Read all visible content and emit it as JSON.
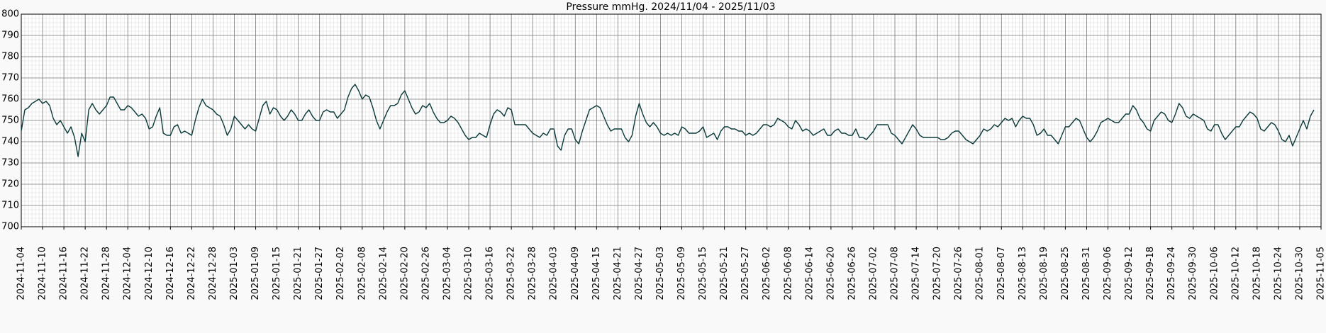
{
  "chart_data": {
    "type": "line",
    "title": "Pressure mmHg. 2024/11/04 - 2025/11/03",
    "color": "#0b3a3a",
    "grid": true,
    "minor_grid": true,
    "ylim": [
      700,
      800
    ],
    "yticks": [
      700,
      710,
      720,
      730,
      740,
      750,
      760,
      770,
      780,
      790,
      800
    ],
    "xlim": [
      "2024-11-04",
      "2025-11-05"
    ],
    "xticks": [
      "2024-11-04",
      "2024-11-10",
      "2024-11-16",
      "2024-11-22",
      "2024-11-28",
      "2024-12-04",
      "2024-12-10",
      "2024-12-16",
      "2024-12-22",
      "2024-12-28",
      "2025-01-03",
      "2025-01-09",
      "2025-01-15",
      "2025-01-21",
      "2025-01-27",
      "2025-02-02",
      "2025-02-08",
      "2025-02-14",
      "2025-02-20",
      "2025-02-26",
      "2025-03-04",
      "2025-03-10",
      "2025-03-16",
      "2025-03-22",
      "2025-03-28",
      "2025-04-03",
      "2025-04-09",
      "2025-04-15",
      "2025-04-21",
      "2025-04-27",
      "2025-05-03",
      "2025-05-09",
      "2025-05-15",
      "2025-05-21",
      "2025-05-27",
      "2025-06-02",
      "2025-06-08",
      "2025-06-14",
      "2025-06-20",
      "2025-06-26",
      "2025-07-02",
      "2025-07-08",
      "2025-07-14",
      "2025-07-20",
      "2025-07-26",
      "2025-08-01",
      "2025-08-07",
      "2025-08-13",
      "2025-08-19",
      "2025-08-25",
      "2025-08-31",
      "2025-09-06",
      "2025-09-12",
      "2025-09-18",
      "2025-09-24",
      "2025-09-30",
      "2025-10-06",
      "2025-10-12",
      "2025-10-18",
      "2025-10-24",
      "2025-10-30",
      "2025-11-05"
    ],
    "x": [
      "2024-11-04",
      "2024-11-05",
      "2024-11-06",
      "2024-11-07",
      "2024-11-08",
      "2024-11-09",
      "2024-11-10",
      "2024-11-11",
      "2024-11-12",
      "2024-11-13",
      "2024-11-14",
      "2024-11-15",
      "2024-11-16",
      "2024-11-17",
      "2024-11-18",
      "2024-11-19",
      "2024-11-20",
      "2024-11-21",
      "2024-11-22",
      "2024-11-23",
      "2024-11-24",
      "2024-11-25",
      "2024-11-26",
      "2024-11-27",
      "2024-11-28",
      "2024-11-29",
      "2024-11-30",
      "2024-12-01",
      "2024-12-02",
      "2024-12-03",
      "2024-12-04",
      "2024-12-05",
      "2024-12-06",
      "2024-12-07",
      "2024-12-08",
      "2024-12-09",
      "2024-12-10",
      "2024-12-11",
      "2024-12-12",
      "2024-12-13",
      "2024-12-14",
      "2024-12-15",
      "2024-12-16",
      "2024-12-17",
      "2024-12-18",
      "2024-12-19",
      "2024-12-20",
      "2024-12-21",
      "2024-12-22",
      "2024-12-23",
      "2024-12-24",
      "2024-12-25",
      "2024-12-26",
      "2024-12-27",
      "2024-12-28",
      "2024-12-29",
      "2024-12-30",
      "2024-12-31",
      "2025-01-01",
      "2025-01-02",
      "2025-01-03",
      "2025-01-04",
      "2025-01-05",
      "2025-01-06",
      "2025-01-07",
      "2025-01-08",
      "2025-01-09",
      "2025-01-10",
      "2025-01-11",
      "2025-01-12",
      "2025-01-13",
      "2025-01-14",
      "2025-01-15",
      "2025-01-16",
      "2025-01-17",
      "2025-01-18",
      "2025-01-19",
      "2025-01-20",
      "2025-01-21",
      "2025-01-22",
      "2025-01-23",
      "2025-01-24",
      "2025-01-25",
      "2025-01-26",
      "2025-01-27",
      "2025-01-28",
      "2025-01-29",
      "2025-01-30",
      "2025-01-31",
      "2025-02-01",
      "2025-02-02",
      "2025-02-03",
      "2025-02-04",
      "2025-02-05",
      "2025-02-06",
      "2025-02-07",
      "2025-02-08",
      "2025-02-09",
      "2025-02-10",
      "2025-02-11",
      "2025-02-12",
      "2025-02-13",
      "2025-02-14",
      "2025-02-15",
      "2025-02-16",
      "2025-02-17",
      "2025-02-18",
      "2025-02-19",
      "2025-02-20",
      "2025-02-21",
      "2025-02-22",
      "2025-02-23",
      "2025-02-24",
      "2025-02-25",
      "2025-02-26",
      "2025-02-27",
      "2025-02-28",
      "2025-03-01",
      "2025-03-02",
      "2025-03-03",
      "2025-03-04",
      "2025-03-05",
      "2025-03-06",
      "2025-03-07",
      "2025-03-08",
      "2025-03-09",
      "2025-03-10",
      "2025-03-11",
      "2025-03-12",
      "2025-03-13",
      "2025-03-14",
      "2025-03-15",
      "2025-03-16",
      "2025-03-17",
      "2025-03-18",
      "2025-03-19",
      "2025-03-20",
      "2025-03-21",
      "2025-03-22",
      "2025-03-23",
      "2025-03-24",
      "2025-03-25",
      "2025-03-26",
      "2025-03-27",
      "2025-03-28",
      "2025-03-29",
      "2025-03-30",
      "2025-03-31",
      "2025-04-01",
      "2025-04-02",
      "2025-04-03",
      "2025-04-04",
      "2025-04-05",
      "2025-04-06",
      "2025-04-07",
      "2025-04-08",
      "2025-04-09",
      "2025-04-10",
      "2025-04-11",
      "2025-04-12",
      "2025-04-13",
      "2025-04-14",
      "2025-04-15",
      "2025-04-16",
      "2025-04-17",
      "2025-04-18",
      "2025-04-19",
      "2025-04-20",
      "2025-04-21",
      "2025-04-22",
      "2025-04-23",
      "2025-04-24",
      "2025-04-25",
      "2025-04-26",
      "2025-04-27",
      "2025-04-28",
      "2025-04-29",
      "2025-04-30",
      "2025-05-01",
      "2025-05-02",
      "2025-05-03",
      "2025-05-04",
      "2025-05-05",
      "2025-05-06",
      "2025-05-07",
      "2025-05-08",
      "2025-05-09",
      "2025-05-10",
      "2025-05-11",
      "2025-05-12",
      "2025-05-13",
      "2025-05-14",
      "2025-05-15",
      "2025-05-16",
      "2025-05-17",
      "2025-05-18",
      "2025-05-19",
      "2025-05-20",
      "2025-05-21",
      "2025-05-22",
      "2025-05-23",
      "2025-05-24",
      "2025-05-25",
      "2025-05-26",
      "2025-05-27",
      "2025-05-28",
      "2025-05-29",
      "2025-05-30",
      "2025-05-31",
      "2025-06-01",
      "2025-06-02",
      "2025-06-03",
      "2025-06-04",
      "2025-06-05",
      "2025-06-06",
      "2025-06-07",
      "2025-06-08",
      "2025-06-09",
      "2025-06-10",
      "2025-06-11",
      "2025-06-12",
      "2025-06-13",
      "2025-06-14",
      "2025-06-15",
      "2025-06-16",
      "2025-06-17",
      "2025-06-18",
      "2025-06-19",
      "2025-06-20",
      "2025-06-21",
      "2025-06-22",
      "2025-06-23",
      "2025-06-24",
      "2025-06-25",
      "2025-06-26",
      "2025-06-27",
      "2025-06-28",
      "2025-06-29",
      "2025-06-30",
      "2025-07-01",
      "2025-07-02",
      "2025-07-03",
      "2025-07-04",
      "2025-07-05",
      "2025-07-06",
      "2025-07-07",
      "2025-07-08",
      "2025-07-09",
      "2025-07-10",
      "2025-07-11",
      "2025-07-12",
      "2025-07-13",
      "2025-07-14",
      "2025-07-15",
      "2025-07-16",
      "2025-07-17",
      "2025-07-18",
      "2025-07-19",
      "2025-07-20",
      "2025-07-21",
      "2025-07-22",
      "2025-07-23",
      "2025-07-24",
      "2025-07-25",
      "2025-07-26",
      "2025-07-27",
      "2025-07-28",
      "2025-07-29",
      "2025-07-30",
      "2025-07-31",
      "2025-08-01",
      "2025-08-02",
      "2025-08-03",
      "2025-08-04",
      "2025-08-05",
      "2025-08-06",
      "2025-08-07",
      "2025-08-08",
      "2025-08-09",
      "2025-08-10",
      "2025-08-11",
      "2025-08-12",
      "2025-08-13",
      "2025-08-14",
      "2025-08-15",
      "2025-08-16",
      "2025-08-17",
      "2025-08-18",
      "2025-08-19",
      "2025-08-20",
      "2025-08-21",
      "2025-08-22",
      "2025-08-23",
      "2025-08-24",
      "2025-08-25",
      "2025-08-26",
      "2025-08-27",
      "2025-08-28",
      "2025-08-29",
      "2025-08-30",
      "2025-08-31",
      "2025-09-01",
      "2025-09-02",
      "2025-09-03",
      "2025-09-04",
      "2025-09-05",
      "2025-09-06",
      "2025-09-07",
      "2025-09-08",
      "2025-09-09",
      "2025-09-10",
      "2025-09-11",
      "2025-09-12",
      "2025-09-13",
      "2025-09-14",
      "2025-09-15",
      "2025-09-16",
      "2025-09-17",
      "2025-09-18",
      "2025-09-19",
      "2025-09-20",
      "2025-09-21",
      "2025-09-22",
      "2025-09-23",
      "2025-09-24",
      "2025-09-25",
      "2025-09-26",
      "2025-09-27",
      "2025-09-28",
      "2025-09-29",
      "2025-09-30",
      "2025-10-01",
      "2025-10-02",
      "2025-10-03",
      "2025-10-04",
      "2025-10-05",
      "2025-10-06",
      "2025-10-07",
      "2025-10-08",
      "2025-10-09",
      "2025-10-10",
      "2025-10-11",
      "2025-10-12",
      "2025-10-13",
      "2025-10-14",
      "2025-10-15",
      "2025-10-16",
      "2025-10-17",
      "2025-10-18",
      "2025-10-19",
      "2025-10-20",
      "2025-10-21",
      "2025-10-22",
      "2025-10-23",
      "2025-10-24",
      "2025-10-25",
      "2025-10-26",
      "2025-10-27",
      "2025-10-28",
      "2025-10-29",
      "2025-10-30",
      "2025-10-31",
      "2025-11-01",
      "2025-11-02",
      "2025-11-03"
    ],
    "values": [
      745,
      755,
      756,
      758,
      759,
      760,
      758,
      759,
      757,
      751,
      748,
      750,
      747,
      744,
      747,
      742,
      733,
      744,
      740,
      755,
      758,
      755,
      753,
      755,
      757,
      761,
      761,
      758,
      755,
      755,
      757,
      756,
      754,
      752,
      753,
      751,
      746,
      747,
      752,
      756,
      744,
      743,
      743,
      747,
      748,
      744,
      745,
      744,
      743,
      750,
      756,
      760,
      757,
      756,
      755,
      753,
      752,
      748,
      743,
      746,
      752,
      750,
      748,
      746,
      748,
      746,
      745,
      751,
      757,
      759,
      753,
      756,
      755,
      752,
      750,
      752,
      755,
      753,
      750,
      750,
      753,
      755,
      752,
      750,
      750,
      754,
      755,
      754,
      754,
      751,
      753,
      755,
      761,
      765,
      767,
      764,
      760,
      762,
      761,
      756,
      750,
      746,
      750,
      754,
      757,
      757,
      758,
      762,
      764,
      760,
      756,
      753,
      754,
      757,
      756,
      758,
      754,
      751,
      749,
      749,
      750,
      752,
      751,
      749,
      746,
      743,
      741,
      742,
      742,
      744,
      743,
      742,
      748,
      753,
      755,
      754,
      752,
      756,
      755,
      748,
      748,
      748,
      748,
      746,
      744,
      743,
      742,
      744,
      743,
      746,
      746,
      738,
      736,
      743,
      746,
      746,
      741,
      739,
      745,
      750,
      755,
      756,
      757,
      756,
      752,
      748,
      745,
      746,
      746,
      746,
      742,
      740,
      743,
      752,
      758,
      753,
      749,
      747,
      749,
      747,
      744,
      743,
      744,
      743,
      744,
      743,
      747,
      746,
      744,
      744,
      744,
      745,
      747,
      742,
      743,
      744,
      741,
      745,
      747,
      747,
      746,
      746,
      745,
      745,
      743,
      744,
      743,
      744,
      746,
      748,
      748,
      747,
      748,
      751,
      750,
      749,
      747,
      746,
      750,
      748,
      745,
      746,
      745,
      743,
      744,
      745,
      746,
      743,
      743,
      745,
      746,
      744,
      744,
      743,
      743,
      746,
      742,
      742,
      741,
      743,
      745,
      748,
      748,
      748,
      748,
      744,
      743,
      741,
      739,
      742,
      745,
      748,
      746,
      743,
      742,
      742,
      742,
      742,
      742,
      741,
      741,
      742,
      744,
      745,
      745,
      743,
      741,
      740,
      739,
      741,
      743,
      746,
      745,
      746,
      748,
      747,
      749,
      751,
      750,
      751,
      747,
      750,
      752,
      751,
      751,
      748,
      743,
      744,
      746,
      743,
      743,
      741,
      739,
      743,
      747,
      747,
      749,
      751,
      750,
      746,
      742,
      740,
      742,
      745,
      749,
      750,
      751,
      750,
      749,
      749,
      751,
      753,
      753,
      757,
      755,
      751,
      749,
      746,
      745,
      750,
      752,
      754,
      753,
      750,
      749,
      753,
      758,
      756,
      752,
      751,
      753,
      752,
      751,
      750,
      746,
      745,
      748,
      748,
      744,
      741,
      743,
      745,
      747,
      747,
      750,
      752,
      754,
      753,
      751,
      746,
      745,
      747,
      749,
      748,
      745,
      741,
      740,
      743,
      738,
      742,
      746,
      750,
      746,
      752,
      755
    ]
  }
}
